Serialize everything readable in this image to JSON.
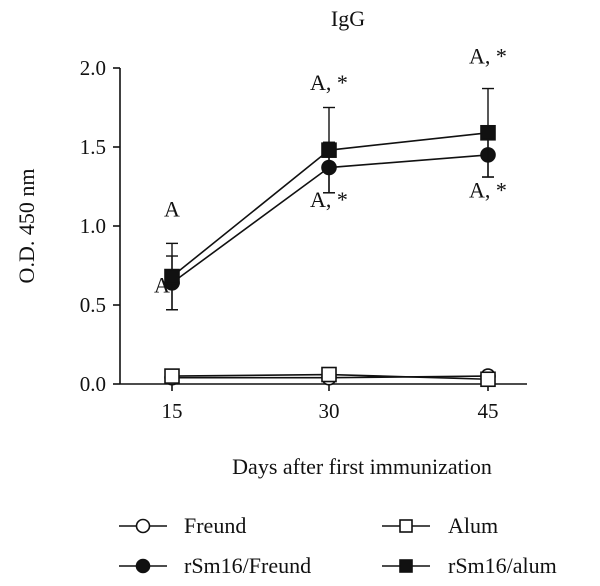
{
  "chart_data": {
    "type": "line",
    "title": "IgG",
    "xlabel": "Days after first immunization",
    "ylabel": "O.D. 450 nm",
    "x": [
      15,
      30,
      45
    ],
    "x_ticks": [
      "15",
      "30",
      "45"
    ],
    "ylim": [
      0,
      2.0
    ],
    "y_ticks": [
      "0.0",
      "0.5",
      "1.0",
      "1.5",
      "2.0"
    ],
    "grid": false,
    "legend_position": "bottom",
    "series": [
      {
        "name": "Freund",
        "marker": "circle-open",
        "values": [
          0.04,
          0.04,
          0.05
        ],
        "errors": [
          0.0,
          0.0,
          0.0
        ]
      },
      {
        "name": "Alum",
        "marker": "square-open",
        "values": [
          0.05,
          0.06,
          0.03
        ],
        "errors": [
          0.0,
          0.0,
          0.0
        ]
      },
      {
        "name": "rSm16/Freund",
        "marker": "circle-filled",
        "values": [
          0.64,
          1.37,
          1.45
        ],
        "errors": [
          0.17,
          0.16,
          0.14
        ]
      },
      {
        "name": "rSm16/alum",
        "marker": "square-filled",
        "values": [
          0.68,
          1.48,
          1.59
        ],
        "errors": [
          0.21,
          0.27,
          0.28
        ]
      }
    ],
    "annotations": [
      {
        "text": "A",
        "x": 15,
        "y": 1.06
      },
      {
        "text": "A",
        "x": 15,
        "y": 0.58
      },
      {
        "text": "A, *",
        "x": 30,
        "y": 1.86
      },
      {
        "text": "A, *",
        "x": 30,
        "y": 1.12
      },
      {
        "text": "A, *",
        "x": 45,
        "y": 2.03
      },
      {
        "text": "A, *",
        "x": 45,
        "y": 1.18
      }
    ]
  }
}
